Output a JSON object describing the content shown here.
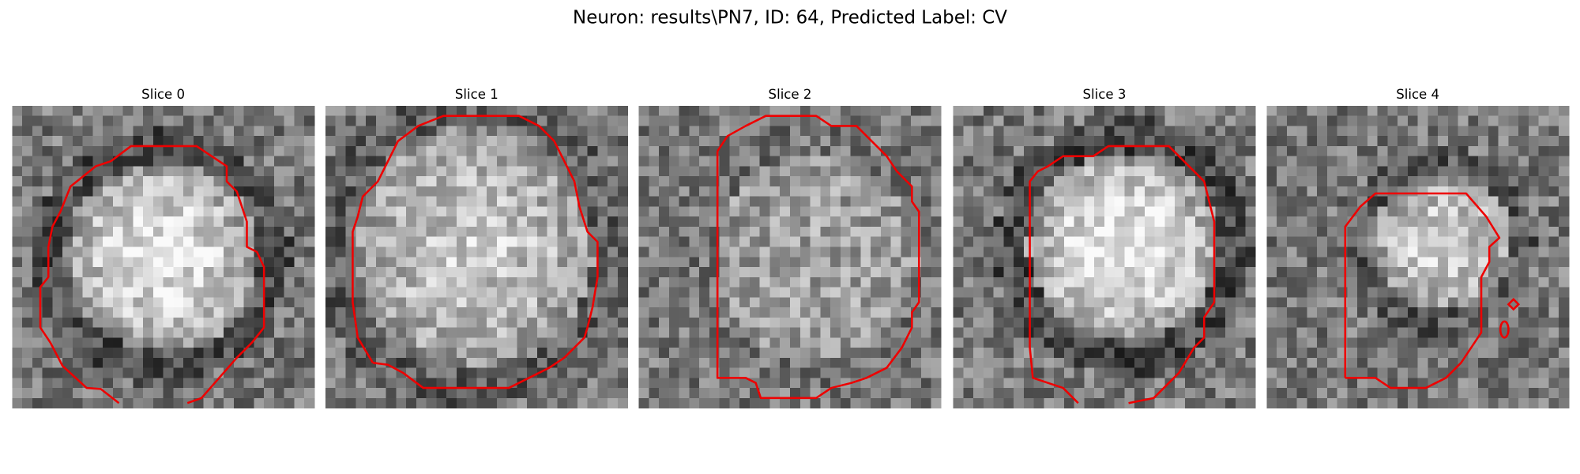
{
  "title": "Neuron: results\\PN7, ID: 64, Predicted Label: CV",
  "panels": [
    {
      "title": "Slice 0"
    },
    {
      "title": "Slice 1"
    },
    {
      "title": "Slice 2"
    },
    {
      "title": "Slice 3"
    },
    {
      "title": "Slice 4"
    }
  ]
}
